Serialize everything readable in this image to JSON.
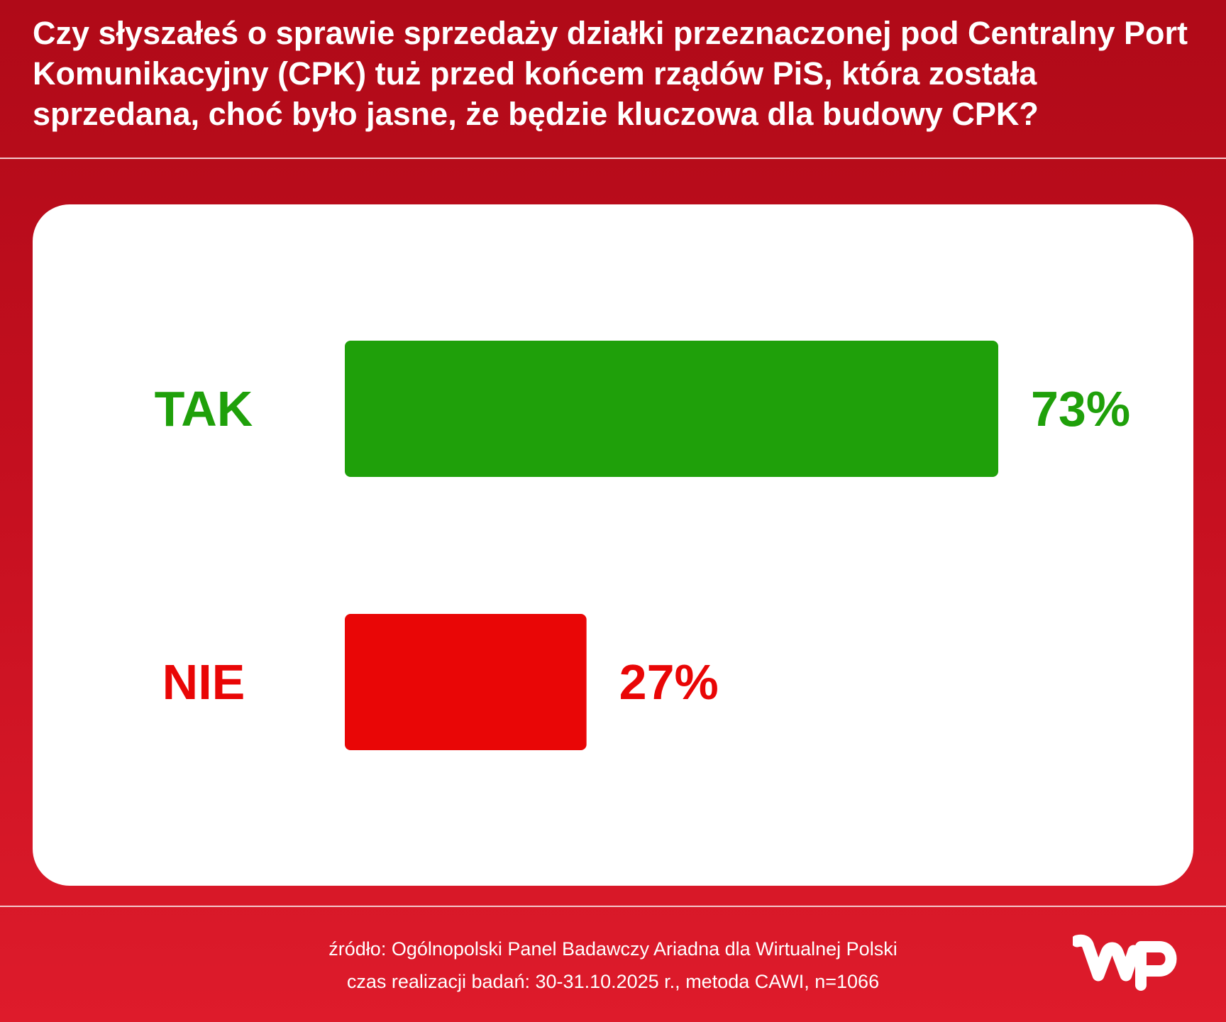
{
  "header": {
    "question": "Czy słyszałeś o sprawie sprzedaży działki przeznaczonej pod Centralny Port Komunikacyjny (CPK) tuż przed końcem rządów PiS, która została sprzedana, choć było jasne, że będzie kluczowa dla budowy CPK?"
  },
  "chart_data": {
    "type": "bar",
    "orientation": "horizontal",
    "title": "Czy słyszałeś o sprawie sprzedaży działki przeznaczonej pod Centralny Port Komunikacyjny (CPK) tuż przed końcem rządów PiS, która została sprzedana, choć było jasne, że będzie kluczowa dla budowy CPK?",
    "categories": [
      "TAK",
      "NIE"
    ],
    "values": [
      73,
      27
    ],
    "value_labels": [
      "73%",
      "27%"
    ],
    "colors": [
      "#1fa00a",
      "#e90606"
    ],
    "unit": "%",
    "xlim": [
      0,
      73
    ],
    "grid": false,
    "legend": "none"
  },
  "footer": {
    "source": "źródło: Ogólnopolski Panel Badawczy Ariadna dla Wirtualnej Polski",
    "method": "czas realizacji badań: 30-31.10.2025 r., metoda CAWI, n=1066"
  },
  "logo": {
    "name": "wp-logo",
    "color": "#ffffff"
  }
}
